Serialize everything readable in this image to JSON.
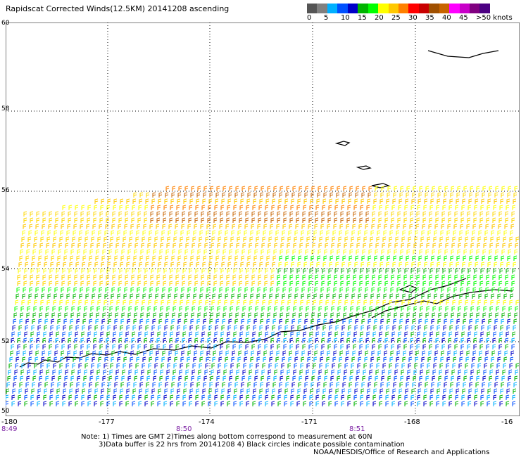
{
  "title": "Rapidscat Corrected Winds(12.5KM) 20141208 ascending",
  "legend": {
    "colors": [
      "#555555",
      "#808080",
      "#00b0ff",
      "#0050ff",
      "#0000c8",
      "#00b400",
      "#00ff00",
      "#ffff00",
      "#ffc800",
      "#ff8000",
      "#ff0000",
      "#c80000",
      "#a05000",
      "#c86400",
      "#ff00ff",
      "#c800c8",
      "#800080",
      "#4b0082"
    ],
    "labels": [
      "0",
      "5",
      "10",
      "15",
      "20",
      "25",
      "30",
      "35",
      "40",
      "45",
      ">50 knots"
    ]
  },
  "lat_labels": [
    "60",
    "58",
    "56",
    "54",
    "52",
    "50"
  ],
  "lon_labels": [
    "-180",
    "-177",
    "-174",
    "-171",
    "-168",
    "-16"
  ],
  "time_labels": [
    "8:49",
    "8:50",
    "8:51"
  ],
  "notes": [
    "Note: 1) Times are GMT 2)Times along bottom correspond to measurement at 60N",
    "3)Data buffer is 22 hrs from 20141208 4) Black circles indicate possible contamination",
    "NOAA/NESDIS/Office of Research and Applications"
  ]
}
